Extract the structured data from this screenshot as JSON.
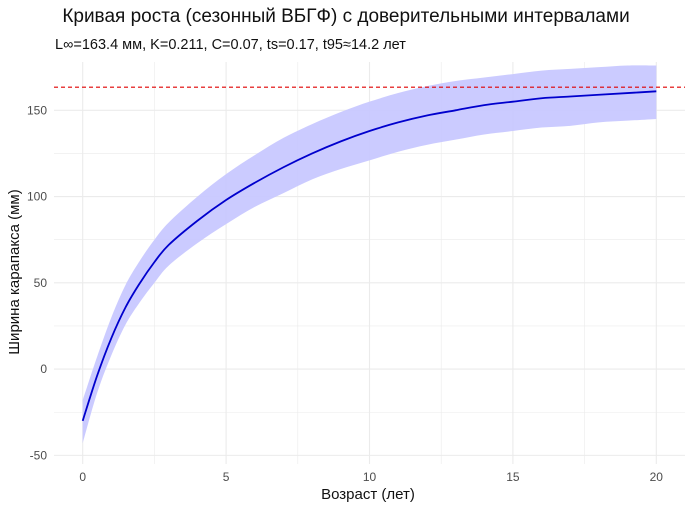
{
  "chart_data": {
    "type": "line",
    "title": "Кривая роста (сезонный ВБГФ) с доверительными интервалами",
    "subtitle": "L∞=163.4 мм, K=0.211, C=0.07, ts=0.17, t95≈14.2 лет",
    "xlabel": "Возраст (лет)",
    "ylabel": "Ширина карапакса (мм)",
    "xlim": [
      -1,
      21
    ],
    "ylim": [
      -55,
      178
    ],
    "x_ticks": [
      0,
      5,
      10,
      15,
      20
    ],
    "y_ticks": [
      -50,
      0,
      50,
      100,
      150
    ],
    "x_tick_labels": [
      "0",
      "5",
      "10",
      "15",
      "20"
    ],
    "y_tick_labels": [
      "-50",
      "0",
      "50",
      "100",
      "150"
    ],
    "grid": true,
    "asymptote": 163.4,
    "colors": {
      "line": "#0000cd",
      "band": "#c8c8ff",
      "asymptote": "#e00000",
      "grid": "#ebebeb"
    },
    "x": [
      0,
      0.5,
      1,
      1.5,
      2,
      2.5,
      3,
      4,
      5,
      6,
      7,
      8,
      9,
      10,
      11,
      12,
      13,
      14,
      15,
      16,
      17,
      18,
      19,
      20
    ],
    "y": [
      -30,
      -4,
      18,
      36,
      50,
      62,
      72,
      86,
      98,
      108,
      117,
      125,
      132,
      138,
      143,
      147,
      150,
      153,
      155,
      157,
      158,
      159,
      160,
      161
    ],
    "lower": [
      -43,
      -14,
      8,
      26,
      39,
      50,
      60,
      73,
      84,
      94,
      102,
      110,
      116,
      121,
      126,
      130,
      133,
      136,
      138,
      140,
      141,
      143,
      144,
      145
    ],
    "upper": [
      -18,
      7,
      30,
      49,
      63,
      75,
      85,
      100,
      113,
      124,
      134,
      142,
      149,
      155,
      160,
      164,
      167,
      169,
      171,
      173,
      174,
      175,
      176,
      176
    ]
  }
}
